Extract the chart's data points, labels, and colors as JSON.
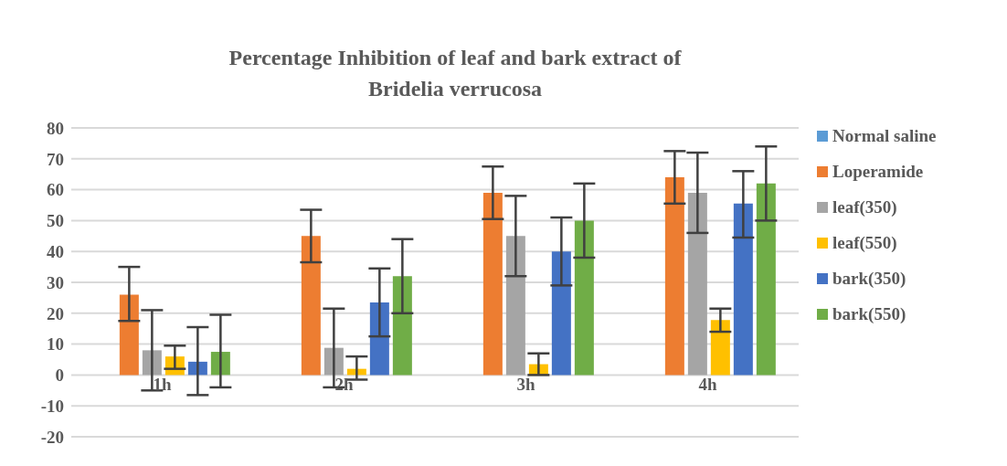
{
  "chart_data": {
    "type": "bar",
    "title": "Percentage Inhibition of leaf and bark extract  of Bridelia verrucosa",
    "categories": [
      "1h",
      "2h",
      "3h",
      "4h"
    ],
    "series": [
      {
        "name": "Normal saline",
        "color": "#5b9bd5",
        "values": [
          0,
          0,
          0,
          0
        ]
      },
      {
        "name": "Loperamide",
        "color": "#ed7d31",
        "values": [
          26,
          45,
          59,
          64
        ],
        "errors": [
          [
            17.5,
            35
          ],
          [
            36.5,
            53.5
          ],
          [
            50.5,
            67.5
          ],
          [
            55.5,
            72.5
          ]
        ]
      },
      {
        "name": "leaf(350)",
        "color": "#a5a5a5",
        "values": [
          8,
          8.8,
          45,
          59
        ],
        "errors": [
          [
            -5,
            21
          ],
          [
            -4,
            21.5
          ],
          [
            32,
            58
          ],
          [
            46,
            72
          ]
        ]
      },
      {
        "name": "leaf(550)",
        "color": "#ffc000",
        "values": [
          6,
          2,
          3.5,
          17.8
        ],
        "errors": [
          [
            2,
            9.5
          ],
          [
            -1.5,
            6
          ],
          [
            0,
            7
          ],
          [
            14,
            21.5
          ]
        ]
      },
      {
        "name": "bark(350)",
        "color": "#4472c4",
        "values": [
          4.3,
          23.5,
          40,
          55.5
        ],
        "errors": [
          [
            -6.5,
            15.5
          ],
          [
            12.5,
            34.5
          ],
          [
            29,
            51
          ],
          [
            44.5,
            66
          ]
        ]
      },
      {
        "name": "bark(550)",
        "color": "#70ad47",
        "values": [
          7.5,
          32,
          50,
          62
        ],
        "errors": [
          [
            -4,
            19.5
          ],
          [
            20,
            44
          ],
          [
            38,
            62
          ],
          [
            50,
            74
          ]
        ]
      }
    ],
    "ylim": [
      -20,
      80
    ],
    "yticks": [
      -20,
      -10,
      0,
      10,
      20,
      30,
      40,
      50,
      60,
      70,
      80
    ],
    "grid": "y",
    "legend": "right"
  }
}
